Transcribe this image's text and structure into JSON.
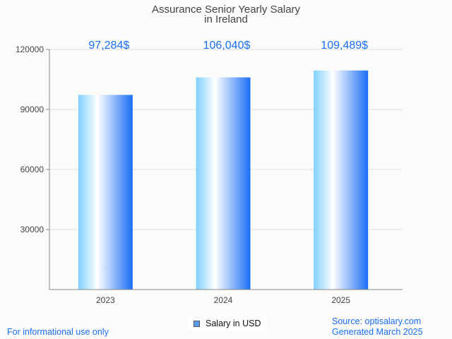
{
  "chart_data": {
    "type": "bar",
    "title": [
      "Assurance Senior Yearly Salary",
      "in Ireland"
    ],
    "categories": [
      "2023",
      "2024",
      "2025"
    ],
    "values": [
      97284,
      106040,
      109489
    ],
    "data_labels": [
      "97,284$",
      "106,040$",
      "109,489$"
    ],
    "xlabel": "",
    "ylabel": "",
    "ylim": [
      0,
      120000
    ],
    "yticks": [
      "30000",
      "60000",
      "90000",
      "120000"
    ],
    "ytick_values": [
      30000,
      60000,
      90000,
      120000
    ],
    "grid": true,
    "legend": {
      "label": "Salary in USD",
      "placement": "bottom-center"
    },
    "colors": {
      "bar_left": "#7fd0ff",
      "bar_mid": "#ffffff",
      "bar_right": "#1a6ef5",
      "label": "#1a6ef5"
    }
  },
  "footer": {
    "left": "For informational use only",
    "source": "Source: optisalary.com",
    "generated": "Generated March 2025"
  }
}
